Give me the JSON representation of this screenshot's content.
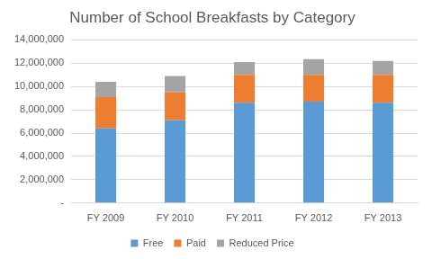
{
  "chart_data": {
    "type": "bar",
    "title": "Number of School Breakfasts by Category",
    "categories": [
      "FY 2009",
      "FY 2010",
      "FY 2011",
      "FY 2012",
      "FY 2013"
    ],
    "series": [
      {
        "name": "Free",
        "color": "#5b9bd5",
        "values": [
          6400000,
          7100000,
          8600000,
          8700000,
          8600000
        ]
      },
      {
        "name": "Paid",
        "color": "#ed7d31",
        "values": [
          2700000,
          2400000,
          2400000,
          2300000,
          2400000
        ]
      },
      {
        "name": "Reduced Price",
        "color": "#a5a5a5",
        "values": [
          1300000,
          1400000,
          1100000,
          1350000,
          1200000
        ]
      }
    ],
    "stacked": true,
    "ylim": [
      0,
      14000000
    ],
    "yticks": [
      {
        "value": 0,
        "label": "-"
      },
      {
        "value": 2000000,
        "label": "2,000,000"
      },
      {
        "value": 4000000,
        "label": "4,000,000"
      },
      {
        "value": 6000000,
        "label": "6,000,000"
      },
      {
        "value": 8000000,
        "label": "8,000,000"
      },
      {
        "value": 10000000,
        "label": "10,000,000"
      },
      {
        "value": 12000000,
        "label": "12,000,000"
      },
      {
        "value": 14000000,
        "label": "14,000,000"
      }
    ],
    "grid": true,
    "legend": "bottom"
  }
}
